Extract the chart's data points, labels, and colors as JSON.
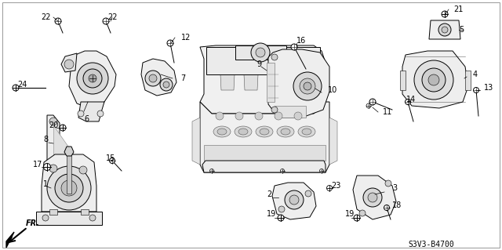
{
  "background_color": "#ffffff",
  "diagram_code": "S3V3-B4700",
  "figsize": [
    6.4,
    3.19
  ],
  "dpi": 100,
  "label_fontsize": 7,
  "ref_code": "S3V3-B4700"
}
